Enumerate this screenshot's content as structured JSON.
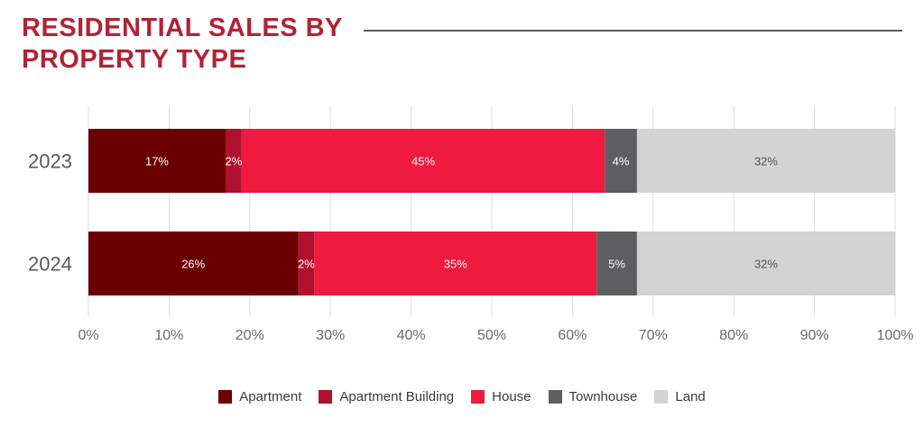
{
  "header": {
    "title_line1": "RESIDENTIAL SALES BY",
    "title_line2": "PROPERTY TYPE"
  },
  "chart_data": {
    "type": "bar",
    "orientation": "horizontal",
    "stacked": true,
    "title": "RESIDENTIAL SALES BY PROPERTY TYPE",
    "categories": [
      "2023",
      "2024"
    ],
    "series": [
      {
        "name": "Apartment",
        "values": [
          17,
          26
        ],
        "labels": [
          "17%",
          "26%"
        ],
        "color": "#6b0000",
        "label_color": "#ffffff"
      },
      {
        "name": "Apartment Building",
        "values": [
          2,
          2
        ],
        "labels": [
          "2%",
          "2%"
        ],
        "color": "#b0112c",
        "label_color": "#ffffff"
      },
      {
        "name": "House",
        "values": [
          45,
          35
        ],
        "labels": [
          "45%",
          "35%"
        ],
        "color": "#ee1a40",
        "label_color": "#ffffff"
      },
      {
        "name": "Townhouse",
        "values": [
          4,
          5
        ],
        "labels": [
          "4%",
          "5%"
        ],
        "color": "#5e5e62",
        "label_color": "#ffffff"
      },
      {
        "name": "Land",
        "values": [
          32,
          32
        ],
        "labels": [
          "32%",
          "32%"
        ],
        "color": "#d3d3d3",
        "label_color": "#555555"
      }
    ],
    "xlim": [
      0,
      100
    ],
    "x_ticks": [
      0,
      10,
      20,
      30,
      40,
      50,
      60,
      70,
      80,
      90,
      100
    ],
    "x_tick_labels": [
      "0%",
      "10%",
      "20%",
      "30%",
      "40%",
      "50%",
      "60%",
      "70%",
      "80%",
      "90%",
      "100%"
    ],
    "xlabel": "",
    "ylabel": "",
    "grid": true,
    "legend_position": "bottom-center"
  }
}
